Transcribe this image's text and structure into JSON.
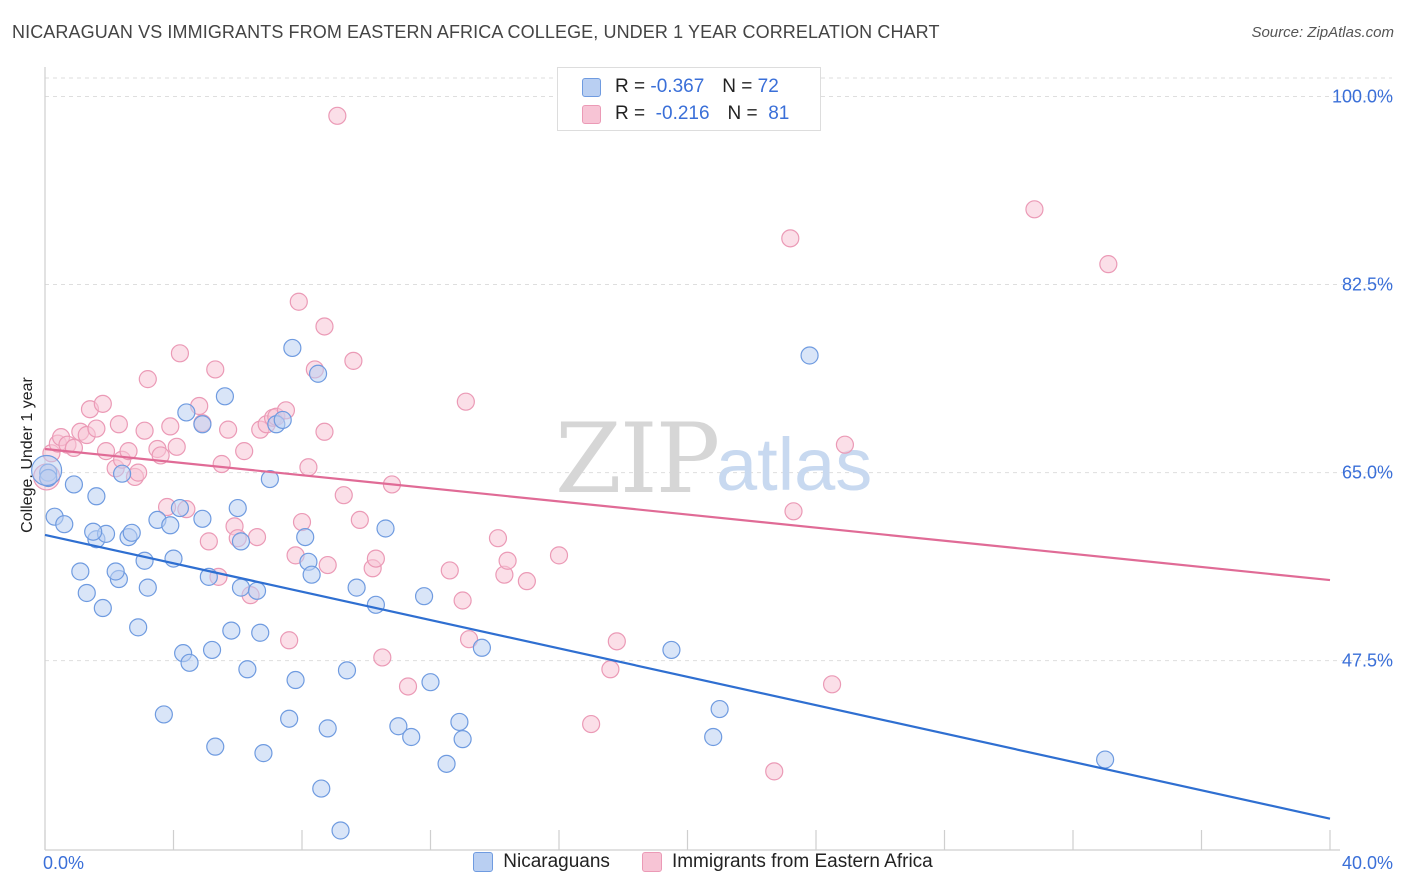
{
  "title": "NICARAGUAN VS IMMIGRANTS FROM EASTERN AFRICA COLLEGE, UNDER 1 YEAR CORRELATION CHART",
  "source": "Source: ZipAtlas.com",
  "watermark": {
    "zip": "ZIP",
    "atlas": "atlas"
  },
  "legend": {
    "r_label": "R =",
    "n_label": "N =",
    "rows": [
      {
        "r": "-0.367",
        "n": "72"
      },
      {
        "r": "-0.216",
        "n": "81"
      }
    ]
  },
  "colors": {
    "blue_fill": "#b9cff2",
    "blue_stroke": "#6f9be0",
    "blue_line": "#2f6fd1",
    "pink_fill": "#f7c4d5",
    "pink_stroke": "#eb9ab6",
    "pink_line": "#e06b96",
    "tick_text": "#3a6fd8",
    "grid": "#dedede"
  },
  "chart_data": {
    "type": "scatter",
    "title": "NICARAGUAN VS IMMIGRANTS FROM EASTERN AFRICA COLLEGE, UNDER 1 YEAR CORRELATION CHART",
    "xlabel": "",
    "ylabel": "College, Under 1 year",
    "xlim": [
      0,
      40
    ],
    "ylim": [
      31,
      102
    ],
    "x_tick_labels": [
      "0.0%",
      "40.0%"
    ],
    "y_ticks": [
      47.5,
      65.0,
      82.5,
      100.0
    ],
    "y_tick_labels": [
      "47.5%",
      "65.0%",
      "82.5%",
      "100.0%"
    ],
    "series": [
      {
        "name": "Nicaraguans",
        "color": "blue",
        "r": -0.367,
        "n": 72,
        "trend": {
          "x": [
            0,
            40
          ],
          "y": [
            59.2,
            32.8
          ]
        },
        "points": [
          [
            0.1,
            65.0
          ],
          [
            0.3,
            60.9
          ],
          [
            0.6,
            60.2
          ],
          [
            0.9,
            63.9
          ],
          [
            1.1,
            55.8
          ],
          [
            1.3,
            53.8
          ],
          [
            1.6,
            58.8
          ],
          [
            1.6,
            62.8
          ],
          [
            1.8,
            52.4
          ],
          [
            1.9,
            59.3
          ],
          [
            2.3,
            55.1
          ],
          [
            2.4,
            64.9
          ],
          [
            2.6,
            59.0
          ],
          [
            2.7,
            59.4
          ],
          [
            2.9,
            50.6
          ],
          [
            3.1,
            56.8
          ],
          [
            3.2,
            54.3
          ],
          [
            3.5,
            60.6
          ],
          [
            3.7,
            42.5
          ],
          [
            3.9,
            60.1
          ],
          [
            4.0,
            57.0
          ],
          [
            4.2,
            61.7
          ],
          [
            4.3,
            48.2
          ],
          [
            4.4,
            70.6
          ],
          [
            4.5,
            47.3
          ],
          [
            4.9,
            69.5
          ],
          [
            4.9,
            60.7
          ],
          [
            5.1,
            55.3
          ],
          [
            5.2,
            48.5
          ],
          [
            5.3,
            39.5
          ],
          [
            5.6,
            72.1
          ],
          [
            5.8,
            50.3
          ],
          [
            6.0,
            61.7
          ],
          [
            6.1,
            58.6
          ],
          [
            6.1,
            54.3
          ],
          [
            6.3,
            46.7
          ],
          [
            6.6,
            54.0
          ],
          [
            6.7,
            50.1
          ],
          [
            6.8,
            38.9
          ],
          [
            7.0,
            64.4
          ],
          [
            7.2,
            69.5
          ],
          [
            7.4,
            69.9
          ],
          [
            7.6,
            42.1
          ],
          [
            7.7,
            76.6
          ],
          [
            7.8,
            45.7
          ],
          [
            8.1,
            59.0
          ],
          [
            8.2,
            56.7
          ],
          [
            8.3,
            55.5
          ],
          [
            8.5,
            74.2
          ],
          [
            8.6,
            35.6
          ],
          [
            8.8,
            41.2
          ],
          [
            9.2,
            31.7
          ],
          [
            9.4,
            46.6
          ],
          [
            9.7,
            54.3
          ],
          [
            10.3,
            52.7
          ],
          [
            10.6,
            59.8
          ],
          [
            11.0,
            41.4
          ],
          [
            11.4,
            40.4
          ],
          [
            11.8,
            53.5
          ],
          [
            12.0,
            45.5
          ],
          [
            12.5,
            37.9
          ],
          [
            12.9,
            41.8
          ],
          [
            13.0,
            40.2
          ],
          [
            13.6,
            48.7
          ],
          [
            19.5,
            48.5
          ],
          [
            20.8,
            40.4
          ],
          [
            21.0,
            43.0
          ],
          [
            23.8,
            75.9
          ],
          [
            33.0,
            38.3
          ],
          [
            0.1,
            64.5
          ],
          [
            1.5,
            59.5
          ],
          [
            2.2,
            55.8
          ]
        ]
      },
      {
        "name": "Immigrants from Eastern Africa",
        "color": "pink",
        "r": -0.216,
        "n": 81,
        "trend": {
          "x": [
            0,
            40
          ],
          "y": [
            67.2,
            55.0
          ]
        },
        "points": [
          [
            0.1,
            64.5
          ],
          [
            0.2,
            66.8
          ],
          [
            0.4,
            67.7
          ],
          [
            0.5,
            68.3
          ],
          [
            0.7,
            67.6
          ],
          [
            0.9,
            67.3
          ],
          [
            1.1,
            68.8
          ],
          [
            1.3,
            68.5
          ],
          [
            1.4,
            70.9
          ],
          [
            1.6,
            69.1
          ],
          [
            1.8,
            71.4
          ],
          [
            1.9,
            67.0
          ],
          [
            2.2,
            65.4
          ],
          [
            2.3,
            69.5
          ],
          [
            2.4,
            66.2
          ],
          [
            2.6,
            67.0
          ],
          [
            2.8,
            64.6
          ],
          [
            2.9,
            65.0
          ],
          [
            3.1,
            68.9
          ],
          [
            3.2,
            73.7
          ],
          [
            3.5,
            67.2
          ],
          [
            3.6,
            66.6
          ],
          [
            3.8,
            61.8
          ],
          [
            3.9,
            69.3
          ],
          [
            4.1,
            67.4
          ],
          [
            4.2,
            76.1
          ],
          [
            4.4,
            61.6
          ],
          [
            4.8,
            71.2
          ],
          [
            4.9,
            69.6
          ],
          [
            5.1,
            58.6
          ],
          [
            5.3,
            74.6
          ],
          [
            5.4,
            55.3
          ],
          [
            5.5,
            65.8
          ],
          [
            5.7,
            69.0
          ],
          [
            5.9,
            60.0
          ],
          [
            6.0,
            58.9
          ],
          [
            6.2,
            67.0
          ],
          [
            6.4,
            53.6
          ],
          [
            6.6,
            59.0
          ],
          [
            6.7,
            69.0
          ],
          [
            6.9,
            69.5
          ],
          [
            7.1,
            70.1
          ],
          [
            7.2,
            70.2
          ],
          [
            7.5,
            70.8
          ],
          [
            7.6,
            49.4
          ],
          [
            7.8,
            57.3
          ],
          [
            7.9,
            80.9
          ],
          [
            8.0,
            60.4
          ],
          [
            8.2,
            65.5
          ],
          [
            8.4,
            74.6
          ],
          [
            8.7,
            78.6
          ],
          [
            8.7,
            68.8
          ],
          [
            8.8,
            56.4
          ],
          [
            9.1,
            98.2
          ],
          [
            9.3,
            62.9
          ],
          [
            9.6,
            75.4
          ],
          [
            9.8,
            60.6
          ],
          [
            10.2,
            56.1
          ],
          [
            10.3,
            57.0
          ],
          [
            10.5,
            47.8
          ],
          [
            10.8,
            63.9
          ],
          [
            11.3,
            45.1
          ],
          [
            12.6,
            55.9
          ],
          [
            13.0,
            53.1
          ],
          [
            13.1,
            71.6
          ],
          [
            13.2,
            49.5
          ],
          [
            14.1,
            58.9
          ],
          [
            14.3,
            55.5
          ],
          [
            14.4,
            56.8
          ],
          [
            15.0,
            54.9
          ],
          [
            16.0,
            57.3
          ],
          [
            17.0,
            41.6
          ],
          [
            17.6,
            46.7
          ],
          [
            17.8,
            49.3
          ],
          [
            22.7,
            37.2
          ],
          [
            23.2,
            86.8
          ],
          [
            23.3,
            61.4
          ],
          [
            24.5,
            45.3
          ],
          [
            24.9,
            67.6
          ],
          [
            30.8,
            89.5
          ],
          [
            33.1,
            84.4
          ]
        ]
      }
    ]
  }
}
